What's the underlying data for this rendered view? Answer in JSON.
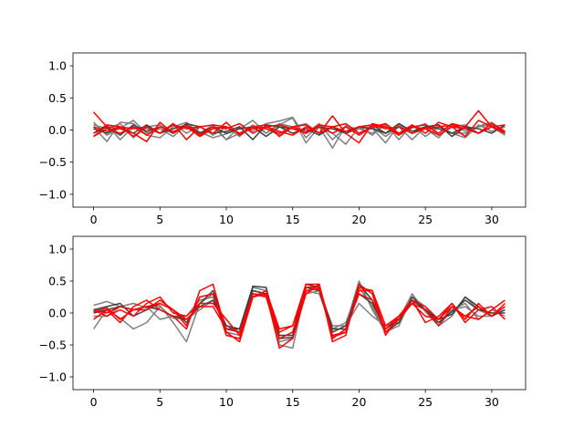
{
  "chart_data": [
    {
      "type": "line",
      "title": "",
      "xlabel": "",
      "ylabel": "",
      "xlim": [
        -1.55,
        32.55
      ],
      "ylim": [
        -1.2,
        1.2
      ],
      "xticks": [
        0,
        5,
        10,
        15,
        20,
        25,
        30
      ],
      "yticks": [
        -1.0,
        -0.5,
        0.0,
        0.5,
        1.0
      ],
      "xtick_labels": [
        "0",
        "5",
        "10",
        "15",
        "20",
        "25",
        "30"
      ],
      "ytick_labels": [
        "−1.0",
        "−0.5",
        "0.0",
        "0.5",
        "1.0"
      ],
      "grid": false,
      "x": [
        0,
        1,
        2,
        3,
        4,
        5,
        6,
        7,
        8,
        9,
        10,
        11,
        12,
        13,
        14,
        15,
        16,
        17,
        18,
        19,
        20,
        21,
        22,
        23,
        24,
        25,
        26,
        27,
        28,
        29,
        30,
        31
      ],
      "series": [
        {
          "color": "#7f7f7f",
          "values": [
            0.12,
            -0.08,
            0.03,
            0.15,
            -0.05,
            0.02,
            -0.1,
            0.08,
            -0.03,
            -0.12,
            -0.06,
            0.02,
            0.15,
            -0.05,
            0.08,
            0.19,
            -0.2,
            0.05,
            -0.28,
            0.07,
            -0.05,
            0.03,
            -0.2,
            0.08,
            -0.05,
            0.02,
            -0.12,
            0.1,
            -0.02,
            0.06,
            0.12,
            -0.03
          ]
        },
        {
          "color": "#7f7f7f",
          "values": [
            0.05,
            -0.18,
            0.12,
            0.1,
            -0.08,
            -0.12,
            0.05,
            0.12,
            -0.05,
            0.08,
            -0.15,
            0.05,
            -0.02,
            0.1,
            0.14,
            0.2,
            -0.12,
            0.08,
            -0.05,
            -0.22,
            0.05,
            -0.08,
            0.1,
            -0.15,
            0.08,
            -0.1,
            0.05,
            -0.05,
            -0.12,
            0.08,
            -0.02,
            0.05
          ]
        },
        {
          "color": "#7f7f7f",
          "values": [
            -0.1,
            0.08,
            -0.15,
            0.05,
            0.02,
            -0.05,
            0.1,
            -0.05,
            0.06,
            -0.08,
            0.05,
            -0.1,
            0.08,
            -0.05,
            0.1,
            0.05,
            -0.05,
            0.1,
            -0.15,
            0.05,
            0.02,
            -0.05,
            0.08,
            -0.08,
            0.03,
            0.1,
            -0.08,
            0.05,
            0.08,
            -0.05,
            0.05,
            -0.08
          ]
        },
        {
          "color": "#7f7f7f",
          "values": [
            0.08,
            0.02,
            0.1,
            -0.12,
            0.05,
            0.08,
            -0.05,
            0.05,
            -0.08,
            0.05,
            -0.15,
            -0.05,
            0.05,
            0.02,
            -0.08,
            0.05,
            0.1,
            -0.05,
            0.05,
            -0.05,
            0.02,
            0.05,
            -0.1,
            0.05,
            -0.15,
            0.05,
            0.08,
            -0.05,
            -0.05,
            0.05,
            0.08,
            -0.02
          ]
        },
        {
          "color": "#3f3f3f",
          "values": [
            -0.05,
            0.05,
            -0.08,
            0.08,
            -0.02,
            0.05,
            -0.05,
            0.1,
            0.05,
            -0.05,
            -0.02,
            0.05,
            -0.15,
            0.08,
            0.05,
            -0.05,
            0.02,
            -0.08,
            0.05,
            -0.05,
            0.05,
            0.08,
            -0.05,
            0.1,
            -0.02,
            0.05,
            0.08,
            -0.1,
            0.05,
            -0.05,
            0.05,
            -0.05
          ]
        },
        {
          "color": "#3f3f3f",
          "values": [
            0.02,
            -0.05,
            0.05,
            -0.05,
            0.08,
            -0.05,
            0.02,
            0.08,
            -0.05,
            0.05,
            -0.05,
            0.02,
            0.05,
            -0.1,
            0.05,
            0.02,
            -0.05,
            0.05,
            0.02,
            -0.05,
            0.05,
            0.02,
            -0.05,
            0.05,
            -0.05,
            0.05,
            0.02,
            -0.05,
            0.05,
            0.02,
            -0.05,
            0.08
          ]
        },
        {
          "color": "#ff0000",
          "values": [
            0.28,
            0.05,
            0.02,
            -0.05,
            -0.18,
            0.12,
            -0.05,
            0.08,
            -0.08,
            0.05,
            0.02,
            0.1,
            -0.05,
            0.05,
            -0.02,
            -0.08,
            0.05,
            -0.05,
            0.22,
            -0.05,
            -0.2,
            0.1,
            0.05,
            -0.08,
            0.05,
            0.08,
            -0.05,
            0.1,
            0.05,
            0.3,
            0.05,
            -0.05
          ]
        },
        {
          "color": "#ff0000",
          "values": [
            -0.05,
            0.08,
            0.05,
            -0.1,
            0.05,
            -0.05,
            0.1,
            -0.15,
            0.05,
            -0.05,
            0.12,
            -0.08,
            0.05,
            0.08,
            -0.1,
            0.05,
            0.08,
            -0.05,
            0.05,
            0.1,
            -0.05,
            0.05,
            0.1,
            -0.05,
            0.08,
            -0.05,
            0.12,
            0.05,
            -0.1,
            0.15,
            0.05,
            0.08
          ]
        },
        {
          "color": "#ff0000",
          "values": [
            0.05,
            -0.02,
            0.05,
            0.02,
            0.05,
            -0.05,
            0.08,
            0.02,
            0.05,
            0.08,
            0.05,
            -0.05,
            0.02,
            0.05,
            0.08,
            0.02,
            -0.05,
            0.08,
            0.05,
            -0.02,
            0.05,
            0.08,
            0.02,
            0.05,
            -0.05,
            0.02,
            0.05,
            0.08,
            0.02,
            -0.05,
            0.1,
            -0.02
          ]
        },
        {
          "color": "#ff0000",
          "values": [
            -0.1,
            0.02,
            -0.05,
            0.05,
            -0.08,
            0.05,
            -0.02,
            0.05,
            -0.1,
            0.02,
            0.05,
            -0.05,
            0.05,
            0.02,
            -0.05,
            0.05,
            -0.02,
            0.05,
            -0.05,
            0.05,
            -0.08,
            0.05,
            0.05,
            -0.05,
            0.05,
            0.02,
            -0.08,
            0.05,
            0.02,
            -0.05,
            0.05,
            -0.02
          ]
        }
      ]
    },
    {
      "type": "line",
      "title": "",
      "xlabel": "",
      "ylabel": "",
      "xlim": [
        -1.55,
        32.55
      ],
      "ylim": [
        -1.2,
        1.2
      ],
      "xticks": [
        0,
        5,
        10,
        15,
        20,
        25,
        30
      ],
      "yticks": [
        -1.0,
        -0.5,
        0.0,
        0.5,
        1.0
      ],
      "xtick_labels": [
        "0",
        "5",
        "10",
        "15",
        "20",
        "25",
        "30"
      ],
      "ytick_labels": [
        "−1.0",
        "−0.5",
        "0.0",
        "0.5",
        "1.0"
      ],
      "grid": false,
      "x": [
        0,
        1,
        2,
        3,
        4,
        5,
        6,
        7,
        8,
        9,
        10,
        11,
        12,
        13,
        14,
        15,
        16,
        17,
        18,
        19,
        20,
        21,
        22,
        23,
        24,
        25,
        26,
        27,
        28,
        29,
        30,
        31
      ],
      "series": [
        {
          "color": "#7f7f7f",
          "values": [
            0.12,
            0.18,
            0.1,
            0.15,
            0.08,
            0.12,
            -0.15,
            -0.45,
            0.15,
            0.3,
            -0.2,
            -0.3,
            0.4,
            0.35,
            -0.5,
            -0.55,
            0.4,
            0.42,
            -0.3,
            -0.2,
            0.5,
            0.05,
            -0.3,
            -0.1,
            0.3,
            0.02,
            -0.2,
            -0.05,
            0.25,
            0.05,
            -0.05,
            0.1
          ]
        },
        {
          "color": "#7f7f7f",
          "values": [
            -0.25,
            0.05,
            -0.08,
            -0.25,
            -0.15,
            0.1,
            -0.08,
            -0.1,
            0.05,
            0.2,
            -0.25,
            -0.25,
            0.35,
            0.3,
            -0.4,
            -0.3,
            0.3,
            0.35,
            -0.2,
            -0.2,
            0.15,
            -0.05,
            -0.2,
            -0.15,
            0.2,
            0.05,
            -0.15,
            0.05,
            0.1,
            -0.05,
            -0.05,
            0.05
          ]
        },
        {
          "color": "#7f7f7f",
          "values": [
            -0.05,
            -0.05,
            0.1,
            0.05,
            0.1,
            -0.1,
            -0.05,
            -0.05,
            0.2,
            0.25,
            -0.3,
            -0.35,
            0.3,
            0.25,
            -0.45,
            -0.4,
            0.35,
            0.3,
            -0.25,
            -0.15,
            0.4,
            0.1,
            -0.3,
            -0.2,
            0.25,
            0.1,
            -0.2,
            0.05,
            0.15,
            -0.1,
            0.05,
            -0.05
          ]
        },
        {
          "color": "#3f3f3f",
          "values": [
            0.05,
            0.1,
            0.15,
            -0.05,
            0.05,
            0.15,
            0.05,
            -0.15,
            0.15,
            0.35,
            -0.25,
            -0.25,
            0.42,
            0.4,
            -0.4,
            -0.38,
            0.45,
            0.4,
            -0.25,
            -0.25,
            0.45,
            0.2,
            -0.3,
            -0.15,
            0.25,
            0.05,
            -0.1,
            -0.02,
            0.25,
            0.1,
            -0.05,
            0.05
          ]
        },
        {
          "color": "#3f3f3f",
          "values": [
            0.0,
            0.05,
            0.1,
            0.05,
            0.1,
            0.05,
            -0.05,
            -0.1,
            0.1,
            0.2,
            -0.2,
            -0.25,
            0.35,
            0.3,
            -0.35,
            -0.35,
            0.4,
            0.35,
            -0.3,
            -0.2,
            0.3,
            0.15,
            -0.25,
            -0.1,
            0.2,
            0.05,
            -0.15,
            0.02,
            0.2,
            0.05,
            0.0,
            0.0
          ]
        },
        {
          "color": "#ff0000",
          "values": [
            -0.1,
            0.05,
            -0.15,
            0.1,
            0.2,
            0.05,
            -0.05,
            -0.25,
            0.35,
            0.45,
            -0.3,
            -0.45,
            0.25,
            0.3,
            -0.55,
            -0.4,
            0.3,
            0.45,
            -0.45,
            -0.35,
            0.45,
            0.3,
            -0.35,
            -0.05,
            0.2,
            -0.15,
            -0.05,
            0.15,
            -0.15,
            0.05,
            0.1,
            -0.1
          ]
        },
        {
          "color": "#ff0000",
          "values": [
            0.02,
            0.08,
            -0.1,
            0.05,
            0.05,
            0.2,
            0.05,
            -0.2,
            0.25,
            0.3,
            -0.35,
            -0.4,
            0.3,
            0.28,
            -0.3,
            -0.2,
            0.35,
            0.38,
            -0.38,
            -0.3,
            0.4,
            0.35,
            -0.3,
            -0.1,
            0.15,
            0.05,
            -0.2,
            0.1,
            -0.05,
            -0.1,
            0.05,
            0.2
          ]
        },
        {
          "color": "#ff0000",
          "values": [
            0.05,
            -0.05,
            0.05,
            -0.05,
            0.15,
            0.25,
            0.0,
            -0.05,
            0.15,
            0.15,
            -0.1,
            -0.35,
            0.25,
            0.35,
            -0.25,
            -0.2,
            0.45,
            0.45,
            -0.35,
            -0.3,
            0.35,
            0.35,
            -0.2,
            -0.05,
            0.2,
            0.1,
            -0.1,
            0.15,
            -0.1,
            0.15,
            -0.05,
            0.1
          ]
        },
        {
          "color": "#ff0000",
          "values": [
            0.05,
            0.0,
            0.1,
            0.05,
            0.1,
            0.15,
            0.05,
            -0.1,
            0.1,
            0.1,
            -0.25,
            -0.3,
            0.3,
            0.25,
            -0.4,
            -0.3,
            0.4,
            0.4,
            -0.4,
            -0.25,
            0.3,
            0.2,
            -0.25,
            -0.05,
            0.15,
            -0.05,
            -0.1,
            0.1,
            -0.05,
            0.1,
            -0.05,
            0.15
          ]
        }
      ]
    }
  ]
}
